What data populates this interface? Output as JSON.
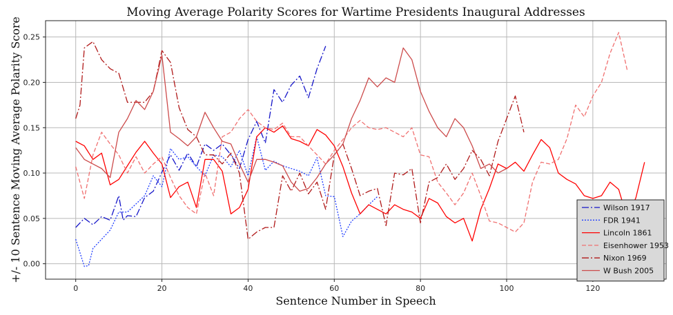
{
  "chart_data": {
    "type": "line",
    "title": "Moving Average Polarity Scores for Wartime Presidents Inaugural Addresses",
    "xlabel": "Sentence Number in Speech",
    "ylabel": "+/- 10 Sentence Moving Average Polarity Score",
    "xlim": [
      -7,
      137
    ],
    "ylim": [
      -0.017,
      0.268
    ],
    "xticks": [
      0,
      20,
      40,
      60,
      80,
      100,
      120
    ],
    "yticks": [
      0.0,
      0.05,
      0.1,
      0.15,
      0.2,
      0.25
    ],
    "grid": true,
    "legend_position": "lower-right",
    "series": [
      {
        "name": "Wilson 1917",
        "color": "#1414c8",
        "dash": "10,3,2,3",
        "x": [
          0,
          2,
          4,
          6,
          8,
          10,
          11,
          12,
          14,
          16,
          18,
          20,
          22,
          24,
          26,
          28,
          30,
          32,
          34,
          36,
          38,
          40,
          42,
          44,
          46,
          48,
          50,
          52,
          54,
          56,
          58
        ],
        "y": [
          0.04,
          0.05,
          0.043,
          0.052,
          0.048,
          0.075,
          0.048,
          0.053,
          0.052,
          0.073,
          0.08,
          0.101,
          0.12,
          0.103,
          0.122,
          0.107,
          0.132,
          0.125,
          0.132,
          0.12,
          0.105,
          0.137,
          0.157,
          0.133,
          0.192,
          0.178,
          0.197,
          0.207,
          0.183,
          0.215,
          0.24
        ]
      },
      {
        "name": "FDR 1941",
        "color": "#1e3cff",
        "dash": "2,2",
        "x": [
          0,
          2,
          3,
          4,
          6,
          8,
          10,
          12,
          14,
          16,
          18,
          20,
          22,
          24,
          26,
          28,
          30,
          32,
          34,
          36,
          38,
          40,
          42,
          44,
          46,
          48,
          50,
          52,
          54,
          56,
          58,
          60,
          62,
          64,
          66,
          68,
          70
        ],
        "y": [
          0.027,
          -0.003,
          -0.002,
          0.017,
          0.027,
          0.037,
          0.057,
          0.057,
          0.066,
          0.075,
          0.097,
          0.085,
          0.127,
          0.115,
          0.118,
          0.107,
          0.097,
          0.12,
          0.118,
          0.107,
          0.125,
          0.097,
          0.14,
          0.103,
          0.113,
          0.108,
          0.105,
          0.102,
          0.097,
          0.117,
          0.075,
          0.074,
          0.03,
          0.047,
          0.055,
          0.065,
          0.074
        ]
      },
      {
        "name": "Lincoln 1861",
        "color": "#ff0000",
        "dash": "",
        "x": [
          0,
          2,
          4,
          6,
          8,
          10,
          12,
          14,
          16,
          18,
          20,
          22,
          24,
          26,
          28,
          30,
          32,
          34,
          36,
          38,
          40,
          42,
          44,
          46,
          48,
          50,
          52,
          54,
          56,
          58,
          60,
          62,
          64,
          66,
          68,
          70,
          72,
          74,
          76,
          78,
          80,
          82,
          84,
          86,
          88,
          90,
          92,
          94,
          96,
          98,
          100,
          102,
          104,
          106,
          108,
          110,
          112,
          114,
          116,
          118,
          120,
          122,
          124,
          126,
          128,
          130,
          132
        ],
        "y": [
          0.135,
          0.13,
          0.115,
          0.122,
          0.087,
          0.093,
          0.108,
          0.123,
          0.135,
          0.122,
          0.11,
          0.073,
          0.085,
          0.09,
          0.062,
          0.115,
          0.115,
          0.102,
          0.055,
          0.062,
          0.082,
          0.14,
          0.15,
          0.145,
          0.152,
          0.138,
          0.135,
          0.13,
          0.148,
          0.142,
          0.13,
          0.107,
          0.078,
          0.055,
          0.065,
          0.06,
          0.055,
          0.065,
          0.06,
          0.057,
          0.05,
          0.072,
          0.067,
          0.052,
          0.045,
          0.05,
          0.025,
          0.06,
          0.083,
          0.11,
          0.105,
          0.112,
          0.102,
          0.12,
          0.137,
          0.128,
          0.1,
          0.093,
          0.088,
          0.075,
          0.072,
          0.075,
          0.09,
          0.082,
          0.05,
          0.073,
          0.112
        ]
      },
      {
        "name": "Eisenhower 1953",
        "color": "#f07070",
        "dash": "6,3",
        "x": [
          0,
          2,
          4,
          6,
          8,
          10,
          12,
          14,
          16,
          18,
          20,
          22,
          24,
          26,
          28,
          30,
          32,
          34,
          36,
          38,
          40,
          42,
          44,
          46,
          48,
          50,
          52,
          54,
          56,
          58,
          60,
          62,
          64,
          66,
          68,
          70,
          72,
          74,
          76,
          78,
          80,
          82,
          84,
          86,
          88,
          90,
          92,
          94,
          96,
          98,
          100,
          102,
          104,
          106,
          108,
          110,
          112,
          114,
          116,
          118,
          120,
          122,
          124,
          126,
          128
        ],
        "y": [
          0.107,
          0.072,
          0.12,
          0.145,
          0.132,
          0.12,
          0.1,
          0.118,
          0.1,
          0.11,
          0.118,
          0.095,
          0.075,
          0.062,
          0.055,
          0.1,
          0.075,
          0.14,
          0.145,
          0.16,
          0.17,
          0.157,
          0.15,
          0.148,
          0.155,
          0.14,
          0.14,
          0.13,
          0.12,
          0.11,
          0.125,
          0.137,
          0.15,
          0.158,
          0.15,
          0.148,
          0.15,
          0.145,
          0.14,
          0.15,
          0.12,
          0.118,
          0.09,
          0.078,
          0.065,
          0.078,
          0.1,
          0.075,
          0.047,
          0.045,
          0.04,
          0.035,
          0.045,
          0.09,
          0.112,
          0.11,
          0.115,
          0.138,
          0.175,
          0.162,
          0.185,
          0.2,
          0.232,
          0.255,
          0.213
        ]
      },
      {
        "name": "Nixon 1969",
        "color": "#b01818",
        "dash": "10,3,2,3",
        "x": [
          0,
          1,
          2,
          4,
          6,
          8,
          10,
          12,
          14,
          16,
          18,
          20,
          22,
          24,
          26,
          28,
          30,
          32,
          34,
          36,
          38,
          40,
          42,
          44,
          46,
          48,
          50,
          52,
          54,
          56,
          58,
          60,
          62,
          64,
          66,
          68,
          70,
          72,
          74,
          76,
          78,
          80,
          82,
          84,
          86,
          88,
          90,
          92,
          94,
          96,
          98,
          100,
          102,
          104
        ],
        "y": [
          0.16,
          0.175,
          0.238,
          0.245,
          0.225,
          0.215,
          0.21,
          0.178,
          0.178,
          0.178,
          0.19,
          0.235,
          0.222,
          0.172,
          0.148,
          0.14,
          0.12,
          0.12,
          0.11,
          0.122,
          0.1,
          0.027,
          0.035,
          0.04,
          0.04,
          0.097,
          0.08,
          0.1,
          0.077,
          0.09,
          0.06,
          0.12,
          0.132,
          0.105,
          0.075,
          0.08,
          0.083,
          0.042,
          0.1,
          0.098,
          0.105,
          0.045,
          0.09,
          0.095,
          0.11,
          0.093,
          0.105,
          0.125,
          0.115,
          0.097,
          0.135,
          0.16,
          0.185,
          0.145
        ]
      },
      {
        "name": "W Bush 2005",
        "color": "#cc4a4a",
        "dash": "",
        "x": [
          0,
          2,
          4,
          6,
          8,
          10,
          12,
          14,
          16,
          18,
          20,
          22,
          24,
          26,
          28,
          30,
          32,
          34,
          36,
          38,
          40,
          42,
          44,
          46,
          48,
          50,
          52,
          54,
          56,
          58,
          60,
          62,
          64,
          66,
          68,
          70,
          72,
          74,
          76,
          78,
          80,
          82,
          84,
          86,
          88,
          90,
          92,
          94,
          96,
          98,
          100
        ],
        "y": [
          0.128,
          0.115,
          0.11,
          0.105,
          0.095,
          0.145,
          0.16,
          0.18,
          0.17,
          0.19,
          0.23,
          0.145,
          0.138,
          0.13,
          0.14,
          0.167,
          0.15,
          0.135,
          0.132,
          0.11,
          0.09,
          0.115,
          0.115,
          0.112,
          0.108,
          0.09,
          0.08,
          0.083,
          0.095,
          0.11,
          0.12,
          0.132,
          0.16,
          0.18,
          0.205,
          0.195,
          0.205,
          0.2,
          0.238,
          0.225,
          0.19,
          0.168,
          0.15,
          0.14,
          0.16,
          0.15,
          0.13,
          0.105,
          0.11,
          0.1,
          0.105
        ]
      }
    ]
  }
}
